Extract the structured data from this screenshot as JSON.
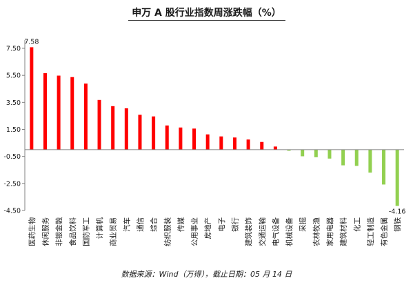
{
  "chart_data": {
    "type": "bar",
    "title": "申万 A 股行业指数周涨跌幅（%）",
    "categories": [
      "医药生物",
      "休闲服务",
      "非银金融",
      "食品饮料",
      "国防军工",
      "计算机",
      "商业贸易",
      "汽车",
      "通信",
      "综合",
      "纺织服装",
      "传媒",
      "公用事业",
      "房地产",
      "电子",
      "银行",
      "建筑装饰",
      "交通运输",
      "电气设备",
      "机械设备",
      "采掘",
      "农林牧渔",
      "家用电器",
      "建筑材料",
      "化工",
      "轻工制造",
      "有色金属",
      "钢铁"
    ],
    "values": [
      7.58,
      5.66,
      5.48,
      5.37,
      4.89,
      3.68,
      3.22,
      3.06,
      2.58,
      2.46,
      1.79,
      1.64,
      1.56,
      1.13,
      0.98,
      0.9,
      0.75,
      0.57,
      0.23,
      -0.08,
      -0.49,
      -0.56,
      -0.66,
      -1.16,
      -1.2,
      -1.7,
      -2.58,
      -4.16
    ],
    "data_labels": [
      {
        "index": 0,
        "text": "7.58"
      },
      {
        "index": 27,
        "text": "-4.16"
      }
    ],
    "y_ticks": [
      "7.50",
      "5.50",
      "3.50",
      "1.50",
      "-0.50",
      "-2.50",
      "-4.50"
    ],
    "ylim": [
      -4.5,
      8.2
    ],
    "grid": false,
    "legend": "none",
    "colors": {
      "positive": "#ff0000",
      "negative": "#92d050",
      "axis": "#808080",
      "text": "#1a1a1a"
    }
  },
  "source_note": "数据来源：Wind（万得），截止日期：05 月 14 日"
}
